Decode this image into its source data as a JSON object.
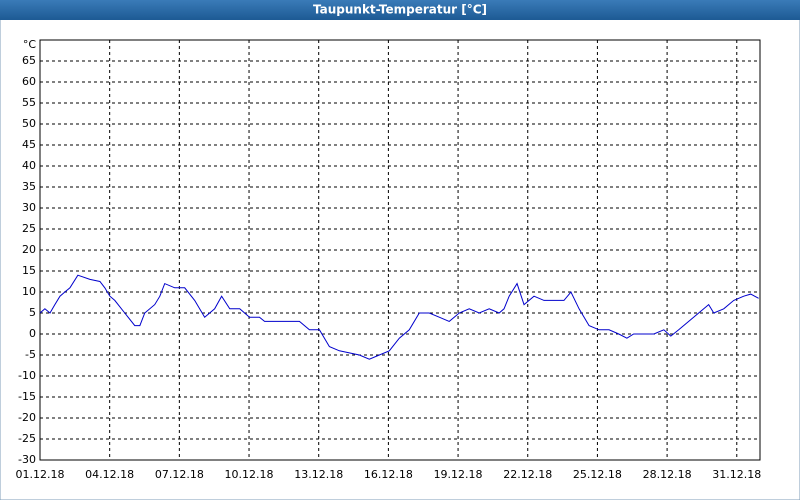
{
  "chart_data": {
    "type": "line",
    "title": "Taupunkt-Temperatur [°C]",
    "y_unit": "°C",
    "xlim": [
      0,
      31
    ],
    "xticks": [
      {
        "value": 0,
        "label": "01.12.18"
      },
      {
        "value": 3,
        "label": "04.12.18"
      },
      {
        "value": 6,
        "label": "07.12.18"
      },
      {
        "value": 9,
        "label": "10.12.18"
      },
      {
        "value": 12,
        "label": "13.12.18"
      },
      {
        "value": 15,
        "label": "16.12.18"
      },
      {
        "value": 18,
        "label": "19.12.18"
      },
      {
        "value": 21,
        "label": "22.12.18"
      },
      {
        "value": 24,
        "label": "25.12.18"
      },
      {
        "value": 27,
        "label": "28.12.18"
      },
      {
        "value": 30,
        "label": "31.12.18"
      }
    ],
    "ylim": [
      -30,
      70
    ],
    "yticks": [
      -30,
      -25,
      -20,
      -15,
      -10,
      -5,
      0,
      5,
      10,
      15,
      20,
      25,
      30,
      35,
      40,
      45,
      50,
      55,
      60,
      65
    ],
    "grid": true,
    "series": [
      {
        "color": "#0000cc",
        "x": [
          0,
          0.21,
          0.43,
          0.64,
          0.86,
          1.07,
          1.29,
          1.63,
          2.15,
          2.58,
          2.79,
          3.01,
          3.22,
          3.65,
          4.08,
          4.3,
          4.51,
          4.94,
          5.16,
          5.37,
          5.8,
          6.23,
          6.66,
          7.09,
          7.52,
          7.82,
          8.17,
          8.6,
          9.02,
          9.45,
          9.67,
          10.1,
          10.74,
          11.17,
          11.6,
          12.03,
          12.46,
          12.89,
          13.32,
          13.75,
          14.18,
          14.61,
          15.04,
          15.47,
          15.9,
          16.33,
          16.76,
          17.19,
          17.62,
          18.05,
          18.48,
          18.91,
          19.34,
          19.77,
          19.98,
          20.2,
          20.54,
          20.84,
          21.27,
          21.7,
          22.13,
          22.56,
          22.86,
          23.21,
          23.64,
          24.07,
          24.5,
          24.92,
          25.27,
          25.56,
          25.99,
          26.43,
          26.86,
          27.16,
          27.5,
          27.93,
          28.36,
          28.79,
          29.01,
          29.44,
          29.87,
          30.3,
          30.6,
          30.94
        ],
        "values": [
          5,
          6,
          5,
          7,
          9,
          10,
          11,
          14,
          13,
          12.5,
          11,
          9,
          8,
          5,
          2,
          2,
          5,
          7,
          9,
          12,
          11,
          11,
          8,
          4,
          6,
          9,
          6,
          6,
          4,
          4,
          3,
          3,
          3,
          3,
          1,
          1,
          -3,
          -4,
          -4.5,
          -5,
          -6,
          -5,
          -4,
          -1,
          1,
          5,
          5,
          4,
          3,
          5,
          6,
          5,
          6,
          5,
          6,
          9,
          12,
          7,
          9,
          8,
          8,
          8,
          10,
          6,
          2,
          1,
          1,
          0,
          -1,
          0,
          0,
          0,
          1,
          -0.5,
          1,
          3,
          5,
          7,
          5,
          6,
          8,
          9,
          9.5,
          8.5
        ]
      }
    ]
  }
}
